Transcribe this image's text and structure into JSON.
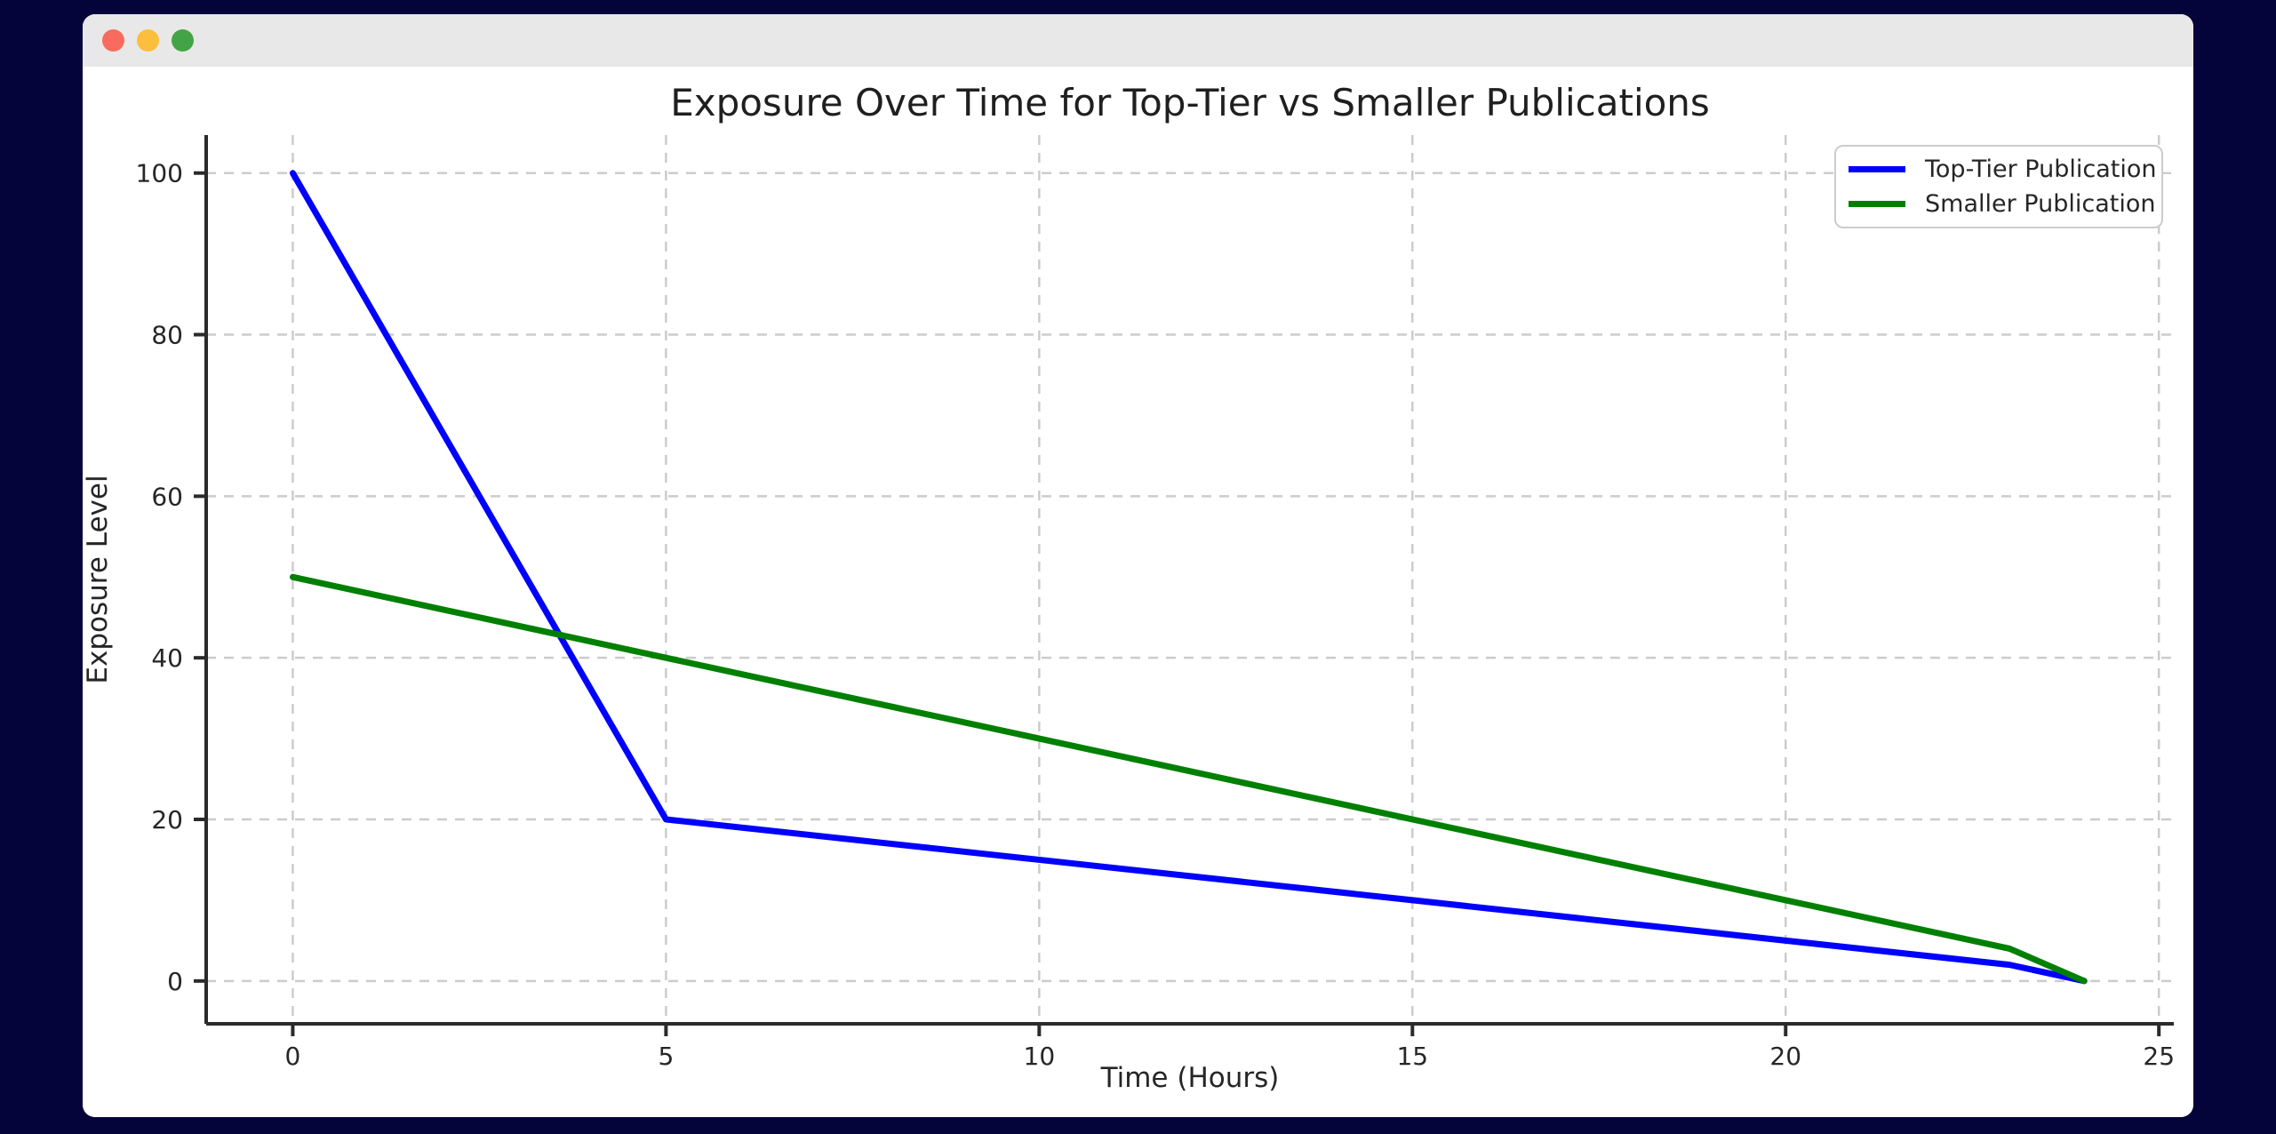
{
  "window": {
    "traffic_lights": [
      {
        "name": "close",
        "color": "#f96b5f"
      },
      {
        "name": "minimize",
        "color": "#fbbe3d"
      },
      {
        "name": "zoom",
        "color": "#43a447"
      }
    ]
  },
  "colors": {
    "desktop_background": "#04033a",
    "window_background": "#ffffff",
    "titlebar_background": "#e9e8e8",
    "grid": "#cccccc",
    "spine": "#2b2b2b",
    "text": "#262626",
    "legend_border": "#cccccc"
  },
  "chart_data": {
    "type": "line",
    "title": "Exposure Over Time for Top-Tier vs Smaller Publications",
    "xlabel": "Time (Hours)",
    "ylabel": "Exposure Level",
    "x": [
      0,
      5,
      10,
      15,
      20,
      23,
      24
    ],
    "series": [
      {
        "name": "Top-Tier Publication",
        "color": "#0000ff",
        "values": [
          100,
          20,
          15,
          10,
          5,
          2,
          0
        ]
      },
      {
        "name": "Smaller Publication",
        "color": "#008000",
        "values": [
          50,
          40,
          30,
          20,
          10,
          4,
          0
        ]
      }
    ],
    "xticks": [
      0,
      5,
      10,
      15,
      20,
      25
    ],
    "yticks": [
      0,
      20,
      40,
      60,
      80,
      100
    ],
    "xlim": [
      -1.16,
      25.2
    ],
    "ylim": [
      -5.3,
      104.7
    ],
    "grid": true,
    "grid_style": "dashed",
    "legend_position": "upper right",
    "line_width": 7
  }
}
